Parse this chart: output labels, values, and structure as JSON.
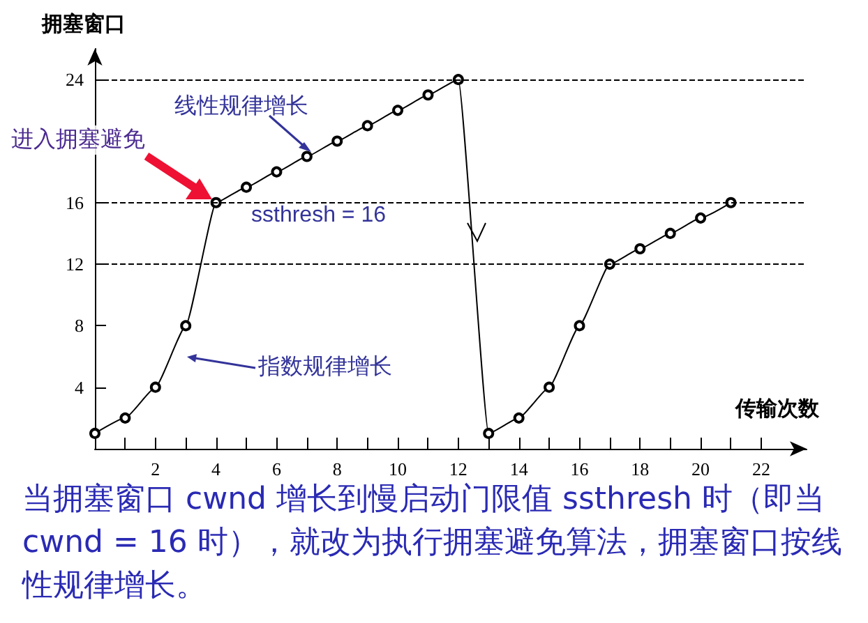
{
  "chart_data": {
    "type": "line",
    "xlabel": "传输次数",
    "ylabel": "拥塞窗口",
    "x": [
      0,
      1,
      2,
      3,
      4,
      5,
      6,
      7,
      8,
      9,
      10,
      11,
      12,
      13,
      14,
      15,
      16,
      17,
      18,
      19,
      20,
      21
    ],
    "series": [
      {
        "color": "#000000",
        "values": [
          1,
          2,
          4,
          8,
          16,
          17,
          18,
          19,
          20,
          21,
          22,
          23,
          24,
          1,
          2,
          4,
          8,
          12,
          13,
          14,
          15,
          16
        ]
      }
    ],
    "xlim": [
      0,
      23.5
    ],
    "ylim": [
      0,
      26
    ],
    "xticks": [
      {
        "value": 0,
        "label": null
      },
      {
        "value": 1,
        "label": null
      },
      2,
      {
        "value": 3,
        "label": null
      },
      4,
      {
        "value": 5,
        "label": null
      },
      6,
      {
        "value": 7,
        "label": null
      },
      8,
      {
        "value": 9,
        "label": null
      },
      10,
      {
        "value": 11,
        "label": null
      },
      12,
      {
        "value": 13,
        "label": null
      },
      14,
      {
        "value": 15,
        "label": null
      },
      16,
      {
        "value": 17,
        "label": null
      },
      18,
      {
        "value": 19,
        "label": null
      },
      20,
      {
        "value": 21,
        "label": null
      },
      22
    ],
    "yticks": [
      4,
      8,
      12,
      16,
      24
    ],
    "ref_lines": [
      {
        "axis": "y",
        "value": 24,
        "line_style": "dashed"
      },
      {
        "axis": "y",
        "value": 16,
        "line_style": "dashed"
      },
      {
        "axis": "y",
        "value": 12,
        "line_style": "dashed"
      }
    ],
    "annotations": [
      "线性规律增长",
      "进入拥塞避免",
      "ssthresh = 16",
      "指数规律增长",
      "当拥塞窗口 cwnd 增长到慢启动门限值 ssthresh 时（即当 cwnd = 16 时），就改为执行拥塞避免算法，拥塞窗口按线性规律增长。"
    ],
    "grid": false,
    "marker": "circle",
    "line_style": "solid"
  }
}
